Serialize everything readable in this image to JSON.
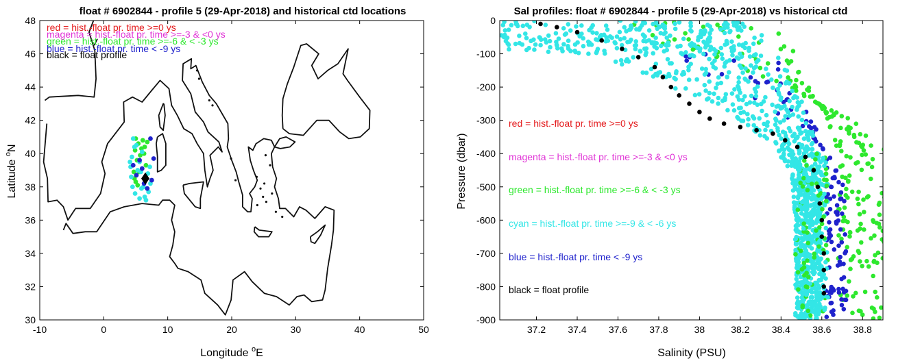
{
  "colors": {
    "red": "#e41a1c",
    "magenta": "#e033d6",
    "green": "#2ee82e",
    "cyan": "#33e6e6",
    "blue": "#1f22cc",
    "black": "#000000"
  },
  "chart_data": [
    {
      "type": "scatter",
      "title": "float # 6902844 - profile 5 (29-Apr-2018) and historical ctd locations",
      "xlabel": "Longitude",
      "xlabel_unit": "E",
      "ylabel": "Latitude",
      "ylabel_unit": "N",
      "degree_mark": "o",
      "xlim": [
        -10,
        50
      ],
      "ylim": [
        30,
        48
      ],
      "xticks": [
        -10,
        0,
        10,
        20,
        30,
        40,
        50
      ],
      "yticks": [
        30,
        32,
        34,
        36,
        38,
        40,
        42,
        44,
        46,
        48
      ],
      "legend": [
        {
          "text": "red = hist.-float pr. time >=0 ys",
          "color": "red"
        },
        {
          "text": "magenta = hist.-float pr. time >=-3 & <0 ys",
          "color": "magenta"
        },
        {
          "text": "green = hist.-float pr. time >=-6 & < -3 ys",
          "color": "green"
        },
        {
          "text": "blue = hist.-float pr. time < -9 ys",
          "color": "blue"
        },
        {
          "text": "black = float profile",
          "color": "black"
        }
      ],
      "float_position": {
        "lon": 6.5,
        "lat": 38.5
      },
      "series": [
        {
          "color": "green",
          "points": [
            [
              5.0,
              40.9
            ],
            [
              5.4,
              40.6
            ],
            [
              5.9,
              40.3
            ],
            [
              6.3,
              40.0
            ],
            [
              5.2,
              39.6
            ],
            [
              6.6,
              39.3
            ],
            [
              5.5,
              38.9
            ],
            [
              4.8,
              38.5
            ],
            [
              5.3,
              38.1
            ],
            [
              6.1,
              40.8
            ],
            [
              6.4,
              40.4
            ],
            [
              4.9,
              40.2
            ],
            [
              5.7,
              39.9
            ],
            [
              6.8,
              40.7
            ],
            [
              4.7,
              38.9
            ],
            [
              5.0,
              38.3
            ]
          ]
        },
        {
          "color": "cyan",
          "points": [
            [
              4.6,
              40.9
            ],
            [
              5.1,
              40.5
            ],
            [
              6.0,
              40.1
            ],
            [
              4.4,
              39.8
            ],
            [
              5.6,
              39.5
            ],
            [
              4.2,
              39.2
            ],
            [
              5.8,
              38.9
            ],
            [
              6.9,
              38.8
            ],
            [
              7.3,
              38.2
            ],
            [
              4.5,
              38.0
            ],
            [
              4.9,
              37.6
            ],
            [
              5.6,
              37.3
            ],
            [
              6.4,
              37.4
            ],
            [
              7.0,
              37.7
            ],
            [
              4.3,
              38.6
            ],
            [
              5.3,
              39.0
            ],
            [
              6.2,
              38.0
            ],
            [
              7.2,
              39.2
            ],
            [
              4.8,
              40.4
            ],
            [
              5.9,
              37.9
            ],
            [
              4.1,
              39.5
            ],
            [
              6.6,
              37.2
            ]
          ]
        },
        {
          "color": "blue",
          "points": [
            [
              5.6,
              39.6
            ],
            [
              6.3,
              38.2
            ],
            [
              7.5,
              38.4
            ],
            [
              5.1,
              38.7
            ],
            [
              7.3,
              40.9
            ],
            [
              6.0,
              39.1
            ],
            [
              7.8,
              39.7
            ],
            [
              4.6,
              39.3
            ],
            [
              6.8,
              37.9
            ]
          ]
        }
      ],
      "coastline_note": "Mediterranean Sea coastline"
    },
    {
      "type": "scatter",
      "title": "Sal profiles: float # 6902844 - profile 5 (29-Apr-2018) vs historical ctd",
      "xlabel": "Salinity (PSU)",
      "ylabel": "Pressure (dbar)",
      "xlim": [
        37.02,
        38.9
      ],
      "ylim": [
        -900,
        0
      ],
      "xticks": [
        37.2,
        37.4,
        37.6,
        37.8,
        38,
        38.2,
        38.4,
        38.6,
        38.8
      ],
      "xtick_labels": [
        "37.2",
        "37.4",
        "37.6",
        "37.8",
        "38",
        "38.2",
        "38.4",
        "38.6",
        "38.8"
      ],
      "yticks": [
        0,
        -100,
        -200,
        -300,
        -400,
        -500,
        -600,
        -700,
        -800,
        -900
      ],
      "legend": [
        {
          "text": "red = hist.-float pr. time >=0 ys",
          "color": "red"
        },
        {
          "text": "magenta = hist.-float pr. time >=-3 & <0 ys",
          "color": "magenta"
        },
        {
          "text": "green = hist.-float pr. time >=-6 & < -3 ys",
          "color": "green"
        },
        {
          "text": "cyan = hist.-float pr. time >=-9 & < -6 ys",
          "color": "cyan"
        },
        {
          "text": "blue = hist.-float pr. time < -9 ys",
          "color": "blue"
        },
        {
          "text": "black = float profile",
          "color": "black"
        }
      ],
      "float_profile": {
        "salinity": [
          37.22,
          37.3,
          37.4,
          37.52,
          37.62,
          37.7,
          37.78,
          37.82,
          37.86,
          37.9,
          37.95,
          38.0,
          38.05,
          38.12,
          38.2,
          38.28,
          38.36,
          38.42,
          38.48,
          38.52,
          38.56,
          38.58,
          38.59,
          38.6,
          38.6,
          38.61,
          38.61,
          38.61,
          38.61
        ],
        "pressure": [
          -10,
          -20,
          -35,
          -60,
          -85,
          -110,
          -140,
          -170,
          -200,
          -225,
          -250,
          -275,
          -295,
          -310,
          -320,
          -330,
          -340,
          -360,
          -380,
          -410,
          -450,
          -500,
          -550,
          -600,
          -650,
          -700,
          -750,
          -800,
          -820
        ]
      },
      "hist_cyan_envelope": {
        "salinity_left": [
          37.02,
          37.3,
          37.6,
          37.8,
          38.0,
          38.2,
          38.35,
          38.45,
          38.47,
          38.47,
          38.47
        ],
        "salinity_right": [
          38.3,
          38.38,
          38.42,
          38.45,
          38.5,
          38.55,
          38.58,
          38.6,
          38.6,
          38.6,
          38.6
        ],
        "pressure": [
          -30,
          -80,
          -130,
          -180,
          -240,
          -300,
          -380,
          -450,
          -600,
          -750,
          -900
        ]
      }
    }
  ]
}
